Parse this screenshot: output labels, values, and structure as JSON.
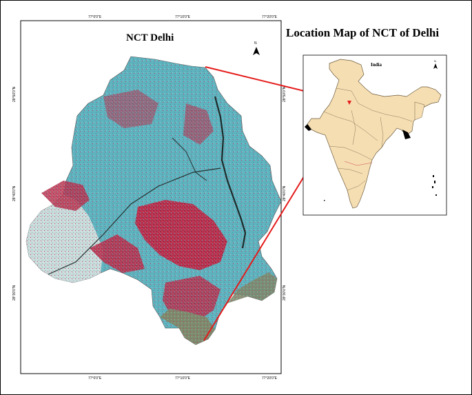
{
  "delhi_map": {
    "title": "NCT Delhi",
    "north_symbol": "N",
    "top_ticks": [
      "77°0'0\"E",
      "77°10'0\"E",
      "77°20'0\"E"
    ],
    "bottom_ticks": [
      "77°0'0\"E",
      "77°10'0\"E",
      "77°20'0\"E"
    ],
    "left_ticks": [
      "28°50'0\"N",
      "28°40'0\"N",
      "28°30'0\"N"
    ],
    "right_ticks": [
      "28°50'0\"N",
      "28°40'0\"N",
      "28°30'0\"N"
    ]
  },
  "location_map": {
    "title": "Location Map of NCT of Delhi",
    "inset_label": "India",
    "north_symbol": "N"
  },
  "colors": {
    "pointer_line": "#e51a1a",
    "india_fill": "#f6deb3",
    "delhi_cyan": "#5fb3bf",
    "delhi_red": "#c43a5a",
    "delhi_pale": "#c9dcdc"
  }
}
